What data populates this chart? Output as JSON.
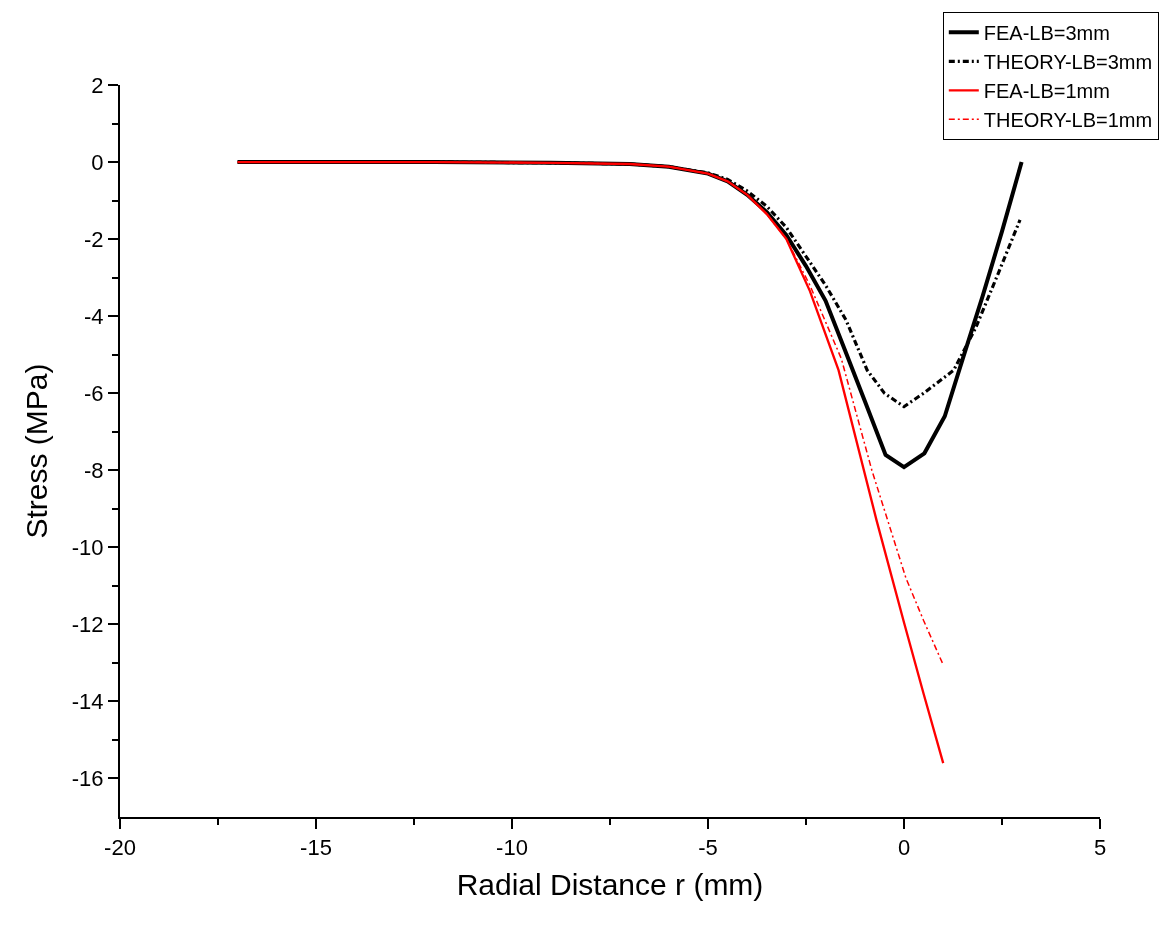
{
  "chart_data": {
    "type": "line",
    "xlabel": "Radial Distance r (mm)",
    "ylabel": "Stress (MPa)",
    "xlim": [
      -20,
      5
    ],
    "xticks": [
      -20,
      -15,
      -10,
      -5,
      0,
      5
    ],
    "ylim": [
      -17,
      2
    ],
    "yticks": [
      2,
      0,
      -2,
      -4,
      -6,
      -8,
      -10,
      -12,
      -14,
      -16
    ],
    "legend": "top right",
    "marker": "none",
    "series": [
      {
        "name": "FEA-LB=3mm",
        "color": "#000000",
        "line_style": "solid",
        "x": [
          -17,
          -12,
          -9,
          -7,
          -6,
          -5,
          -4.5,
          -4,
          -3.5,
          -3,
          -2.5,
          -2,
          -1.5,
          -1,
          -0.47,
          0,
          0.52,
          1.04,
          1.5,
          2,
          2.5,
          3
        ],
        "values": [
          0,
          0,
          -0.02,
          -0.05,
          -0.12,
          -0.3,
          -0.5,
          -0.85,
          -1.3,
          -1.9,
          -2.7,
          -3.6,
          -4.9,
          -6.2,
          -7.6,
          -7.92,
          -7.56,
          -6.6,
          -5.1,
          -3.5,
          -1.8,
          0
        ]
      },
      {
        "name": "THEORY-LB=3mm",
        "color": "#000000",
        "line_style": "dashdot",
        "x": [
          -17,
          -12,
          -9,
          -7,
          -6,
          -5,
          -4.5,
          -4,
          -3.5,
          -3,
          -2.4,
          -2,
          -1.48,
          -0.94,
          -0.5,
          0,
          0.5,
          1.27,
          1.83,
          2.4,
          2.96
        ],
        "values": [
          0,
          0,
          -0.02,
          -0.05,
          -0.12,
          -0.28,
          -0.45,
          -0.75,
          -1.15,
          -1.7,
          -2.6,
          -3.2,
          -4.1,
          -5.4,
          -6.0,
          -6.35,
          -6.0,
          -5.4,
          -4.3,
          -2.9,
          -1.5
        ]
      },
      {
        "name": "FEA-LB=1mm",
        "color": "#ff0000",
        "line_style": "solid",
        "x": [
          -17,
          -12,
          -9,
          -7,
          -6,
          -5,
          -4.5,
          -4,
          -3.5,
          -3,
          -2.4,
          -1.67,
          -0.7,
          0,
          0.5,
          1.0
        ],
        "values": [
          0,
          0,
          -0.02,
          -0.05,
          -0.12,
          -0.3,
          -0.5,
          -0.85,
          -1.35,
          -2.0,
          -3.35,
          -5.4,
          -9.3,
          -11.95,
          -13.8,
          -15.6
        ]
      },
      {
        "name": "THEORY-LB=1mm",
        "color": "#ff0000",
        "line_style": "dashdot",
        "x": [
          -17,
          -12,
          -9,
          -7,
          -6,
          -5,
          -4.5,
          -4,
          -3.5,
          -3,
          -2.4,
          -1.6,
          -0.82,
          0.05,
          0.5,
          1.0
        ],
        "values": [
          0,
          0,
          -0.02,
          -0.05,
          -0.12,
          -0.3,
          -0.5,
          -0.85,
          -1.35,
          -2.0,
          -3.2,
          -5.1,
          -8.0,
          -10.8,
          -11.9,
          -13.05
        ]
      }
    ]
  }
}
